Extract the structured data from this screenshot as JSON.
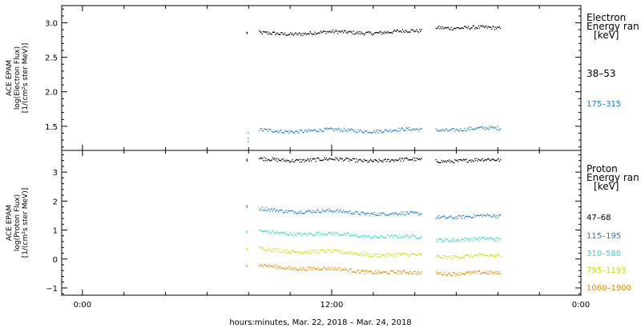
{
  "chart_data": [
    {
      "type": "scatter",
      "panel": "electron",
      "ylabel": [
        "ACE EPAM",
        "log(Electron Flux)",
        "[1/(cm²s ster MeV)]"
      ],
      "ylim": [
        1.15,
        3.25
      ],
      "yticks": [
        1.5,
        2.0,
        2.5,
        3.0
      ],
      "ytick_labels": [
        "1.5",
        "2.0",
        "2.5",
        "3.0"
      ],
      "legend_title": [
        "Electron",
        "Energy ran",
        "[keV]"
      ],
      "legend_placement": "right",
      "series": [
        {
          "name": "38–53",
          "color": "#000000",
          "segments": [
            [
              7.9,
              2.85,
              7.9,
              2.85
            ],
            [
              8.5,
              2.85,
              16.3,
              2.88
            ],
            [
              17.0,
              2.95,
              20.1,
              2.92
            ]
          ]
        },
        {
          "name": "175–315",
          "color": "#1a7cc4",
          "segments": [
            [
              7.95,
              1.25,
              7.95,
              1.42
            ],
            [
              8.5,
              1.44,
              16.3,
              1.45
            ],
            [
              17.0,
              1.46,
              20.1,
              1.47
            ]
          ]
        }
      ]
    },
    {
      "type": "scatter",
      "panel": "proton",
      "ylabel": [
        "ACE EPAM",
        "log(Proton Flux)",
        "[1/(cm²s ster MeV)]"
      ],
      "ylim": [
        -1.25,
        3.75
      ],
      "yticks": [
        -1,
        0,
        1,
        2,
        3
      ],
      "ytick_labels": [
        "−1",
        "0",
        "1",
        "2",
        "3"
      ],
      "legend_title": [
        "Proton",
        "Energy ran",
        "[keV]"
      ],
      "legend_placement": "right",
      "series": [
        {
          "name": "47–68",
          "color": "#000000",
          "segments": [
            [
              7.9,
              3.4,
              7.9,
              3.45
            ],
            [
              8.5,
              3.45,
              16.3,
              3.42
            ],
            [
              17.0,
              3.42,
              20.1,
              3.42
            ]
          ]
        },
        {
          "name": "115–195",
          "color": "#1a7cc4",
          "segments": [
            [
              7.9,
              1.78,
              7.9,
              1.78
            ],
            [
              8.5,
              1.72,
              16.3,
              1.55
            ],
            [
              17.0,
              1.48,
              20.1,
              1.48
            ]
          ]
        },
        {
          "name": "310–580",
          "color": "#2fd6d0",
          "segments": [
            [
              7.9,
              0.95,
              7.9,
              0.95
            ],
            [
              8.5,
              0.95,
              16.3,
              0.75
            ],
            [
              17.0,
              0.7,
              20.1,
              0.68
            ]
          ]
        },
        {
          "name": "795–1193",
          "color": "#c8e000",
          "segments": [
            [
              7.9,
              0.35,
              7.9,
              0.35
            ],
            [
              8.5,
              0.35,
              16.3,
              0.12
            ],
            [
              17.0,
              0.12,
              20.1,
              0.1
            ]
          ]
        },
        {
          "name": "1060–1900",
          "color": "#e08a00",
          "segments": [
            [
              7.9,
              -0.2,
              7.9,
              -0.2
            ],
            [
              8.5,
              -0.22,
              16.3,
              -0.5
            ],
            [
              17.0,
              -0.45,
              20.1,
              -0.5
            ]
          ]
        }
      ]
    }
  ],
  "x_axis": {
    "xlim": [
      -1,
      24
    ],
    "ticks": [
      0,
      12,
      24
    ],
    "tick_labels": [
      "0:00",
      "12:00",
      "0:00"
    ],
    "xlabel": "hours:minutes, Mar. 22, 2018 – Mar. 24, 2018"
  }
}
